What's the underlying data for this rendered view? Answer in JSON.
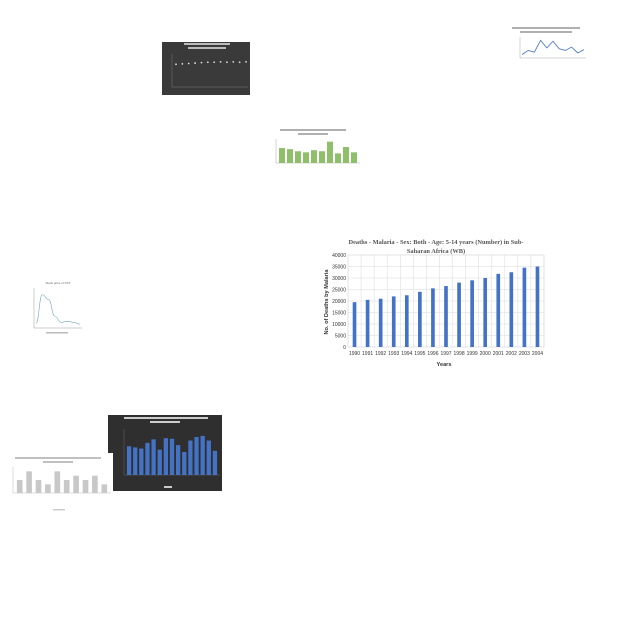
{
  "colors": {
    "dark_bg": "#3a3a3a",
    "dark_bg2": "#2f2f2f",
    "line_blue": "#4472c4",
    "bar_blue": "#4472c4",
    "bar_green": "#8fbf6a",
    "bar_grey": "#c8c8c8",
    "line_teal": "#6fa8b8",
    "grid": "#d9d9d9"
  },
  "chart_data": [
    {
      "id": "c1",
      "type": "scatter",
      "title": "",
      "series": [
        {
          "values": [
            55,
            56,
            57,
            58,
            59,
            60,
            60,
            61,
            60,
            61,
            60,
            61
          ]
        }
      ],
      "ylim": [
        0,
        80
      ]
    },
    {
      "id": "c2",
      "type": "line",
      "title": "",
      "series": [
        {
          "values": [
            400,
            900,
            700,
            2100,
            1200,
            2000,
            1100,
            900,
            1300,
            600,
            1000
          ]
        }
      ],
      "ylim": [
        0,
        2500
      ]
    },
    {
      "id": "c3",
      "type": "bar",
      "title": "",
      "series": [
        {
          "values": [
            28,
            26,
            22,
            20,
            24,
            22,
            40,
            18,
            30,
            20
          ]
        }
      ],
      "ylim": [
        0,
        45
      ]
    },
    {
      "id": "c4",
      "type": "bar",
      "title": "Deaths - Malaria - Sex: Both - Age: 5-14 years (Number) in Sub-Saharan Africa (WB)",
      "xlabel": "Years",
      "ylabel": "No. of Deaths by Malaria",
      "categories": [
        "1990",
        "1991",
        "1992",
        "1993",
        "1994",
        "1995",
        "1996",
        "1997",
        "1998",
        "1999",
        "2000",
        "2001",
        "2002",
        "2003",
        "2004"
      ],
      "values": [
        19500,
        20500,
        21000,
        22000,
        22500,
        24000,
        25500,
        26500,
        28000,
        29000,
        30000,
        31800,
        32500,
        34500,
        35000
      ],
      "ylim": [
        0,
        40000
      ],
      "yticks": [
        0,
        5000,
        10000,
        15000,
        20000,
        25000,
        30000,
        35000,
        40000
      ],
      "grid": true
    },
    {
      "id": "c5",
      "type": "line",
      "title": "Stock price of XXX",
      "series": [
        {
          "values": [
            10,
            70,
            60,
            25,
            12,
            14,
            12,
            8
          ]
        }
      ],
      "ylim": [
        0,
        80
      ]
    },
    {
      "id": "c6",
      "type": "bar",
      "title": "",
      "series": [
        {
          "values": [
            250,
            240,
            230,
            280,
            310,
            220,
            320,
            315,
            260,
            200,
            300,
            330,
            340,
            300,
            210
          ]
        }
      ],
      "ylim": [
        0,
        400
      ]
    },
    {
      "id": "c7",
      "type": "bar",
      "title": "",
      "series": [
        {
          "values": [
            30,
            50,
            30,
            20,
            50,
            30,
            40,
            30,
            40,
            20
          ]
        }
      ],
      "ylim": [
        0,
        60
      ]
    }
  ]
}
